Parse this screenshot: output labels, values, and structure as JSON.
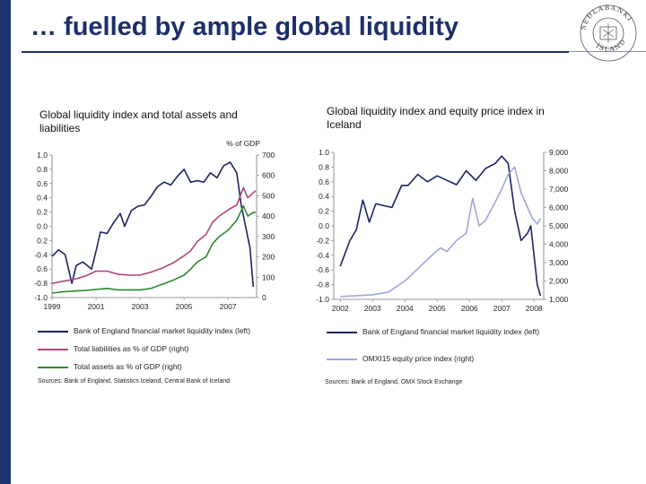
{
  "slide": {
    "title": "… fuelled by ample global liquidity",
    "logo": {
      "icon": "sedlabanki-seal-icon",
      "text_top": "SEÐLABANKI",
      "text_bottom": "ÍSLANDS"
    }
  },
  "colors": {
    "navy": "#1d2f6a",
    "liquidity": "#1b2463",
    "liabilities": "#b0457c",
    "assets": "#2e8a2e",
    "omx": "#9ea6dc"
  },
  "chart_data": [
    {
      "type": "line",
      "title": "Global liquidity index and total assets and liabilities",
      "right_unit_label": "% of GDP",
      "x_ticks": [
        "1999",
        "2001",
        "2003",
        "2005",
        "2007"
      ],
      "x_range": [
        1999,
        2008.3
      ],
      "left_ticks": [
        "1.0",
        "0.8",
        "0.6",
        "0.4",
        "0.2",
        "0.0",
        "0.2",
        "-0.4",
        "0.6",
        "-0.8",
        "-1.0"
      ],
      "left_range": [
        -1.0,
        1.0
      ],
      "right_ticks": [
        "700",
        "600",
        "500",
        "400",
        "300",
        "200",
        "100",
        "0"
      ],
      "right_range": [
        0,
        700
      ],
      "grid": false,
      "series": [
        {
          "name": "Bank of England financial market liquidity index (left)",
          "axis": "left",
          "color": "#1b2463",
          "x": [
            1999.0,
            1999.3,
            1999.6,
            1999.9,
            2000.1,
            2000.4,
            2000.8,
            2001.0,
            2001.2,
            2001.5,
            2001.8,
            2002.1,
            2002.3,
            2002.6,
            2002.9,
            2003.2,
            2003.5,
            2003.8,
            2004.1,
            2004.4,
            2004.7,
            2005.0,
            2005.3,
            2005.6,
            2005.9,
            2006.2,
            2006.5,
            2006.8,
            2007.1,
            2007.4,
            2007.6,
            2007.8,
            2008.0,
            2008.15
          ],
          "y": [
            -0.42,
            -0.33,
            -0.4,
            -0.8,
            -0.55,
            -0.5,
            -0.6,
            -0.35,
            -0.08,
            -0.1,
            0.05,
            0.18,
            0.0,
            0.22,
            0.28,
            0.3,
            0.42,
            0.56,
            0.62,
            0.58,
            0.7,
            0.8,
            0.62,
            0.64,
            0.62,
            0.75,
            0.68,
            0.85,
            0.9,
            0.75,
            0.3,
            0.0,
            -0.3,
            -0.85
          ]
        },
        {
          "name": "Total liabilities as % of GDP (right)",
          "axis": "right",
          "color": "#b0457c",
          "x": [
            1999.0,
            1999.5,
            2000.0,
            2000.5,
            2001.0,
            2001.5,
            2002.0,
            2002.5,
            2003.0,
            2003.5,
            2004.0,
            2004.5,
            2005.0,
            2005.3,
            2005.6,
            2006.0,
            2006.3,
            2006.6,
            2007.0,
            2007.4,
            2007.7,
            2007.9,
            2008.1,
            2008.25
          ],
          "y": [
            70,
            80,
            90,
            105,
            130,
            130,
            115,
            110,
            110,
            125,
            145,
            170,
            205,
            230,
            275,
            310,
            370,
            400,
            430,
            455,
            540,
            490,
            510,
            525
          ]
        },
        {
          "name": "Total assets as % of GDP (right)",
          "axis": "right",
          "color": "#2e8a2e",
          "x": [
            1999.0,
            1999.5,
            2000.0,
            2000.5,
            2001.0,
            2001.5,
            2002.0,
            2002.5,
            2003.0,
            2003.5,
            2004.0,
            2004.5,
            2005.0,
            2005.3,
            2005.6,
            2006.0,
            2006.3,
            2006.6,
            2007.0,
            2007.4,
            2007.7,
            2007.9,
            2008.1,
            2008.25
          ],
          "y": [
            22,
            28,
            32,
            35,
            40,
            45,
            38,
            38,
            38,
            45,
            65,
            85,
            110,
            140,
            175,
            200,
            265,
            300,
            330,
            380,
            450,
            400,
            415,
            420
          ]
        }
      ]
    },
    {
      "type": "line",
      "title": "Global liquidity index and equity price index in Iceland",
      "x_ticks": [
        "2002",
        "2003",
        "2004",
        "2005",
        "2006",
        "2007",
        "2008"
      ],
      "x_range": [
        2001.8,
        2008.3
      ],
      "left_ticks": [
        "1.0",
        "0.8",
        "0.6",
        "0.4",
        "0.2",
        "0.0",
        "-0.2",
        "-0.4",
        "-0.6",
        "-0.8",
        "-1.0"
      ],
      "left_range": [
        -1.0,
        1.0
      ],
      "right_ticks": [
        "9,000",
        "8,000",
        "7,000",
        "6,000",
        "5,000",
        "4,000",
        "3,000",
        "2,000",
        "1,000"
      ],
      "right_range": [
        1000,
        9000
      ],
      "grid": false,
      "series": [
        {
          "name": "Bank of England financial market liquidity index (left)",
          "axis": "left",
          "color": "#1b2463",
          "x": [
            2002.0,
            2002.3,
            2002.5,
            2002.7,
            2002.9,
            2003.1,
            2003.3,
            2003.6,
            2003.9,
            2004.1,
            2004.4,
            2004.7,
            2005.0,
            2005.3,
            2005.6,
            2005.9,
            2006.2,
            2006.5,
            2006.8,
            2007.0,
            2007.2,
            2007.4,
            2007.6,
            2007.8,
            2007.9,
            2008.0,
            2008.1,
            2008.2
          ],
          "y": [
            -0.55,
            -0.2,
            -0.05,
            0.35,
            0.05,
            0.3,
            0.28,
            0.25,
            0.55,
            0.55,
            0.7,
            0.6,
            0.68,
            0.62,
            0.56,
            0.75,
            0.62,
            0.78,
            0.85,
            0.95,
            0.85,
            0.2,
            -0.2,
            -0.1,
            0.0,
            -0.4,
            -0.8,
            -0.95
          ]
        },
        {
          "name": "OMXI15 equity price index (right)",
          "axis": "right",
          "color": "#9ea6dc",
          "x": [
            2002.0,
            2002.5,
            2003.0,
            2003.5,
            2004.0,
            2004.3,
            2004.6,
            2004.9,
            2005.1,
            2005.3,
            2005.6,
            2005.9,
            2006.1,
            2006.3,
            2006.5,
            2006.8,
            2007.0,
            2007.2,
            2007.4,
            2007.6,
            2007.8,
            2007.95,
            2008.1,
            2008.2
          ],
          "y": [
            1150,
            1200,
            1250,
            1400,
            2000,
            2500,
            3000,
            3500,
            3800,
            3600,
            4200,
            4600,
            6500,
            5000,
            5300,
            6300,
            7000,
            7800,
            8200,
            6800,
            6000,
            5400,
            5100,
            5400
          ]
        }
      ]
    }
  ],
  "left_panel": {
    "title": "Global liquidity index and total assets and liabilities",
    "unit": "% of GDP",
    "legend": [
      "Bank of England financial market liquidity index (left)",
      "Total liabilities as % of GDP (right)",
      "Total assets as % of GDP (right)"
    ],
    "source": "Sources: Bank of England, Statistics Iceland, Central Bank of Iceland"
  },
  "right_panel": {
    "title": "Global liquidity index and equity price index in Iceland",
    "legend": [
      "Bank of England financial market liquidity index (left)",
      "OMXI15 equity price index (right)"
    ],
    "source": "Sources: Bank of England, OMX Stock Exchange"
  }
}
